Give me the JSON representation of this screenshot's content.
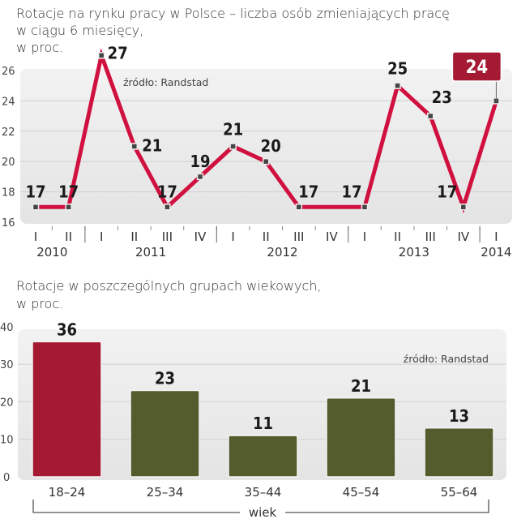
{
  "colors": {
    "line": "#d0103f",
    "highlight": "#a31a32",
    "bar_default": "#545b2c",
    "bar_highlight": "#a31a32",
    "grid": "#d0d0d0",
    "plot_bg": "#ececec"
  },
  "chart_data": [
    {
      "type": "line",
      "title_lines": [
        "Rotacje na rynku pracy w Polsce – liczba osób zmieniających pracę",
        "w ciągu 6 miesięcy,",
        "w proc."
      ],
      "source": "źródło: Randstad",
      "ylim": [
        16,
        27
      ],
      "yticks": [
        "16",
        "18",
        "20",
        "22",
        "24",
        "26"
      ],
      "quarters": [
        "I",
        "II",
        "I",
        "II",
        "III",
        "IV",
        "I",
        "II",
        "III",
        "IV",
        "I",
        "II",
        "III",
        "IV",
        "I"
      ],
      "years": [
        {
          "label": "2010",
          "start": 0,
          "end": 1
        },
        {
          "label": "2011",
          "start": 2,
          "end": 5
        },
        {
          "label": "2012",
          "start": 6,
          "end": 9
        },
        {
          "label": "2013",
          "start": 10,
          "end": 13
        },
        {
          "label": "2014",
          "start": 14,
          "end": 14
        }
      ],
      "values": [
        17,
        17,
        27,
        21,
        17,
        19,
        21,
        20,
        17,
        null,
        17,
        25,
        23,
        17,
        24
      ],
      "labels": [
        "17",
        "17",
        "27",
        "21",
        "17",
        "19",
        "21",
        "20",
        "17",
        "",
        "17",
        "25",
        "23",
        "17",
        "24"
      ],
      "highlight_index": 14
    },
    {
      "type": "bar",
      "title_lines": [
        "Rotacje w poszczególnych grupach wiekowych,",
        "w proc."
      ],
      "source": "źródło: Randstad",
      "ylim": [
        0,
        40
      ],
      "yticks": [
        "0",
        "10",
        "20",
        "30",
        "40"
      ],
      "categories": [
        "18–24",
        "25–34",
        "35–44",
        "45–54",
        "55–64"
      ],
      "values": [
        36,
        23,
        11,
        21,
        13
      ],
      "labels": [
        "36",
        "23",
        "11",
        "21",
        "13"
      ],
      "highlight_index": 0,
      "xlabel": "wiek"
    }
  ]
}
